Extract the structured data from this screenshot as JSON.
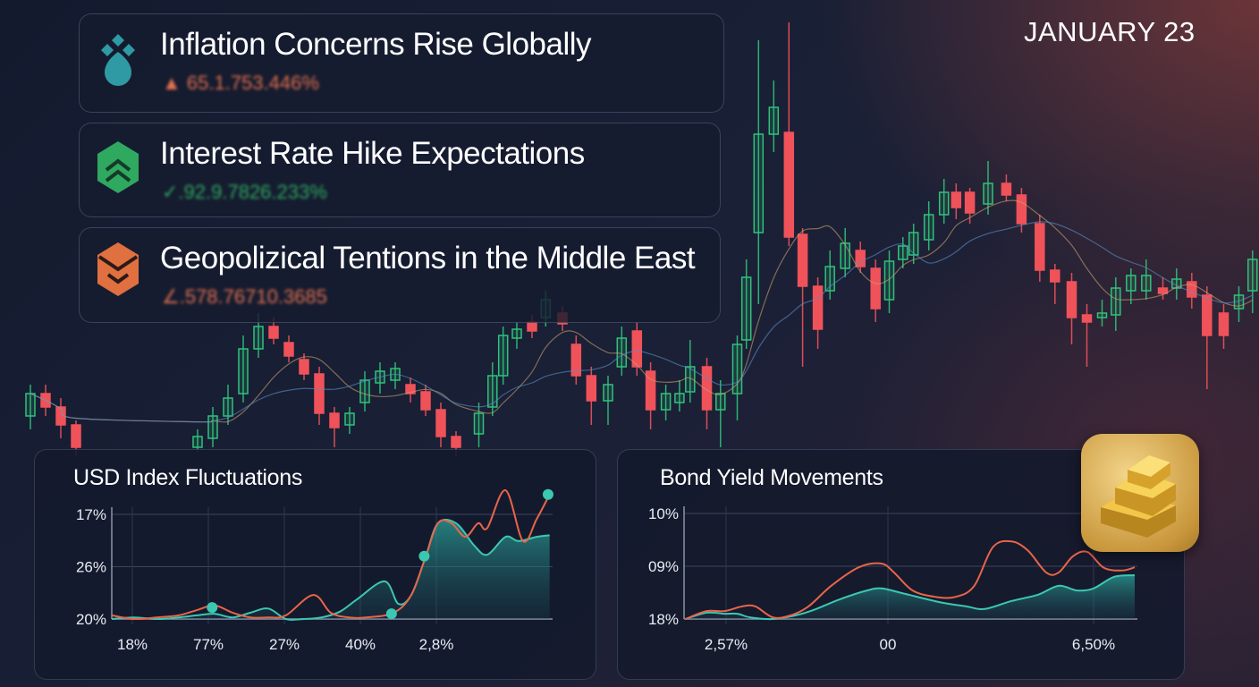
{
  "date": "JANUARY 23",
  "headlines": [
    {
      "title": "Inflation Concerns Rise Globally",
      "value": "▲ 65.1.753.446%",
      "icon": "teal-diamond-drop-icon",
      "color": "#e0704f"
    },
    {
      "title": "Interest Rate Hike Expectations",
      "value": "✓.92.9.7826.233%",
      "icon": "green-chevron-hexagon-icon",
      "color": "#2fa860"
    },
    {
      "title": "Geopolizical Tentions in the Middle East",
      "value": "∠.578.76710.3685",
      "icon": "orange-chevron-hexagon-icon",
      "color": "#e0704f"
    }
  ],
  "colors": {
    "up": "#2fc27a",
    "down": "#f0525a",
    "teal": "#3cc7b2",
    "red": "#e8654a",
    "gold": "#d9a640"
  },
  "gold_icon": "gold-bars-icon",
  "chart_data": [
    {
      "type": "candlestick",
      "title": "",
      "grid": false,
      "candles": [
        [
          2,
          135,
          160,
          170,
          120
        ],
        [
          3,
          160,
          145,
          170,
          135
        ],
        [
          4,
          145,
          125,
          155,
          110
        ],
        [
          5,
          125,
          100,
          130,
          90
        ],
        [
          13,
          100,
          112,
          120,
          95
        ],
        [
          14,
          110,
          135,
          145,
          100
        ],
        [
          15,
          135,
          155,
          170,
          125
        ],
        [
          16,
          160,
          210,
          225,
          150
        ],
        [
          17,
          210,
          235,
          250,
          200
        ],
        [
          18,
          235,
          222,
          245,
          215
        ],
        [
          19,
          217,
          202,
          225,
          195
        ],
        [
          20,
          198,
          182,
          205,
          175
        ],
        [
          21,
          182,
          138,
          190,
          125
        ],
        [
          22,
          138,
          122,
          145,
          100
        ],
        [
          23,
          125,
          138,
          145,
          115
        ],
        [
          24,
          150,
          175,
          185,
          140
        ],
        [
          25,
          172,
          185,
          195,
          160
        ],
        [
          26,
          175,
          188,
          195,
          165
        ],
        [
          27,
          170,
          160,
          178,
          150
        ],
        [
          28,
          162,
          142,
          170,
          135
        ],
        [
          29,
          142,
          112,
          150,
          100
        ],
        [
          30,
          112,
          100,
          118,
          90
        ],
        [
          31.5,
          115,
          138,
          150,
          100
        ],
        [
          32.4,
          145,
          180,
          195,
          135
        ],
        [
          33.1,
          180,
          225,
          235,
          170
        ],
        [
          34,
          222,
          232,
          240,
          210
        ],
        [
          35,
          240,
          230,
          248,
          222
        ],
        [
          35.9,
          245,
          265,
          275,
          235
        ],
        [
          37,
          250,
          238,
          258,
          230
        ],
        [
          37.9,
          215,
          180,
          225,
          170
        ],
        [
          38.9,
          180,
          152,
          190,
          125
        ],
        [
          40,
          152,
          170,
          180,
          125
        ],
        [
          40.9,
          190,
          222,
          235,
          180
        ],
        [
          41.9,
          230,
          190,
          240,
          180
        ],
        [
          42.8,
          185,
          142,
          195,
          120
        ],
        [
          43.8,
          142,
          160,
          170,
          130
        ],
        [
          44.7,
          150,
          160,
          175,
          140
        ],
        [
          45.4,
          162,
          190,
          220,
          150
        ],
        [
          46.5,
          190,
          142,
          200,
          120
        ],
        [
          47.4,
          142,
          160,
          175,
          100
        ],
        [
          48.5,
          160,
          215,
          225,
          130
        ],
        [
          49.1,
          220,
          290,
          310,
          210
        ],
        [
          49.9,
          340,
          450,
          555,
          260
        ],
        [
          50.9,
          450,
          480,
          510,
          430
        ],
        [
          51.9,
          452,
          335,
          575,
          325
        ],
        [
          52.8,
          338,
          280,
          345,
          190
        ],
        [
          53.8,
          280,
          232,
          290,
          210
        ],
        [
          54.6,
          275,
          302,
          320,
          265
        ],
        [
          55.6,
          300,
          328,
          345,
          290
        ],
        [
          56.6,
          320,
          302,
          330,
          295
        ],
        [
          57.6,
          300,
          255,
          310,
          240
        ],
        [
          58.5,
          265,
          308,
          320,
          250
        ],
        [
          59.4,
          310,
          325,
          335,
          300
        ],
        [
          60.1,
          315,
          340,
          350,
          305
        ],
        [
          61.1,
          332,
          360,
          375,
          320
        ],
        [
          62.1,
          360,
          385,
          400,
          350
        ],
        [
          62.9,
          385,
          368,
          395,
          355
        ],
        [
          63.8,
          385,
          362,
          390,
          350
        ],
        [
          65,
          372,
          395,
          420,
          360
        ],
        [
          66.2,
          395,
          382,
          405,
          375
        ],
        [
          67.2,
          382,
          350,
          390,
          340
        ],
        [
          68.4,
          350,
          298,
          360,
          285
        ],
        [
          69.4,
          298,
          285,
          305,
          260
        ],
        [
          70.5,
          285,
          245,
          295,
          215
        ],
        [
          71.5,
          248,
          240,
          260,
          190
        ],
        [
          72.5,
          245,
          250,
          265,
          235
        ],
        [
          73.4,
          248,
          278,
          290,
          230
        ],
        [
          74.4,
          275,
          292,
          300,
          260
        ],
        [
          75.4,
          275,
          292,
          310,
          265
        ],
        [
          76.5,
          278,
          272,
          290,
          265
        ],
        [
          77.4,
          278,
          288,
          300,
          265
        ],
        [
          78.4,
          285,
          268,
          295,
          255
        ],
        [
          79.4,
          270,
          225,
          280,
          165
        ],
        [
          80.5,
          250,
          225,
          260,
          210
        ],
        [
          81.5,
          255,
          270,
          280,
          240
        ],
        [
          82.4,
          275,
          310,
          320,
          250
        ]
      ]
    },
    {
      "type": "area",
      "title": "USD Index Fluctuations",
      "x_tick_labels": [
        "18%",
        "77%",
        "27%",
        "40%",
        "2,8%"
      ],
      "y_tick_labels": [
        "20%",
        "26%",
        "17%"
      ],
      "series": [
        {
          "color": "#e8654a",
          "points": [
            [
              -0.27,
              0.07
            ],
            [
              0.02,
              0
            ],
            [
              0.32,
              0.03
            ],
            [
              0.61,
              0.07
            ],
            [
              0.85,
              0.17
            ],
            [
              1.08,
              0.26
            ],
            [
              1.32,
              0.12
            ],
            [
              1.55,
              0.03
            ],
            [
              1.79,
              0.03
            ],
            [
              2.02,
              0.07
            ],
            [
              2.38,
              0.46
            ],
            [
              2.61,
              0.12
            ],
            [
              2.85,
              0.03
            ],
            [
              3.08,
              0.03
            ],
            [
              3.44,
              0.12
            ],
            [
              3.67,
              0.46
            ],
            [
              3.85,
              1.15
            ],
            [
              4.02,
              1.83
            ],
            [
              4.2,
              1.83
            ],
            [
              4.38,
              1.57
            ],
            [
              4.55,
              1.83
            ],
            [
              4.67,
              1.74
            ],
            [
              4.91,
              2.46
            ],
            [
              5.14,
              1.49
            ],
            [
              5.32,
              1.91
            ],
            [
              5.49,
              2.38
            ]
          ]
        },
        {
          "color": "#3cc7b2",
          "fill": true,
          "points": [
            [
              -0.27,
              0
            ],
            [
              0.02,
              0.03
            ],
            [
              0.32,
              0
            ],
            [
              0.61,
              0.03
            ],
            [
              0.85,
              0.07
            ],
            [
              1.08,
              0.1
            ],
            [
              1.32,
              0.03
            ],
            [
              1.55,
              0.12
            ],
            [
              1.79,
              0.2
            ],
            [
              2.02,
              0
            ],
            [
              2.26,
              0
            ],
            [
              2.49,
              0.03
            ],
            [
              2.73,
              0.14
            ],
            [
              2.96,
              0.38
            ],
            [
              3.32,
              0.72
            ],
            [
              3.5,
              0.29
            ],
            [
              3.67,
              0.46
            ],
            [
              3.85,
              1.15
            ],
            [
              4.02,
              1.83
            ],
            [
              4.26,
              1.83
            ],
            [
              4.5,
              1.4
            ],
            [
              4.67,
              1.23
            ],
            [
              4.91,
              1.57
            ],
            [
              5.08,
              1.49
            ],
            [
              5.32,
              1.57
            ],
            [
              5.49,
              1.6
            ]
          ]
        }
      ],
      "markers": [
        [
          1.05,
          0.22
        ],
        [
          3.41,
          0.1
        ],
        [
          3.84,
          1.2
        ],
        [
          5.47,
          2.38
        ]
      ]
    },
    {
      "type": "area",
      "title": "Bond Yield Movements",
      "x_tick_labels": [
        "2,57%",
        "00",
        "6,50%"
      ],
      "y_tick_labels": [
        "18%",
        "09%",
        "10%"
      ],
      "series": [
        {
          "color": "#e8654a",
          "points": [
            [
              -0.25,
              0
            ],
            [
              -0.12,
              0.15
            ],
            [
              -0.01,
              0.15
            ],
            [
              0.1,
              0.24
            ],
            [
              0.18,
              0.24
            ],
            [
              0.29,
              0.03
            ],
            [
              0.4,
              0.07
            ],
            [
              0.51,
              0.24
            ],
            [
              0.65,
              0.63
            ],
            [
              0.82,
              0.98
            ],
            [
              0.96,
              1.05
            ],
            [
              1.03,
              0.88
            ],
            [
              1.12,
              0.54
            ],
            [
              1.23,
              0.42
            ],
            [
              1.33,
              0.42
            ],
            [
              1.42,
              0.63
            ],
            [
              1.51,
              1.36
            ],
            [
              1.6,
              1.47
            ],
            [
              1.68,
              1.3
            ],
            [
              1.77,
              0.88
            ],
            [
              1.83,
              0.88
            ],
            [
              1.9,
              1.19
            ],
            [
              1.97,
              1.27
            ],
            [
              2.05,
              0.97
            ],
            [
              2.14,
              0.92
            ],
            [
              2.2,
              0.98
            ]
          ]
        },
        {
          "color": "#3cc7b2",
          "fill": true,
          "points": [
            [
              -0.25,
              0
            ],
            [
              -0.12,
              0.12
            ],
            [
              -0.01,
              0.1
            ],
            [
              0.07,
              0.1
            ],
            [
              0.15,
              0.03
            ],
            [
              0.29,
              0
            ],
            [
              0.43,
              0.07
            ],
            [
              0.54,
              0.17
            ],
            [
              0.7,
              0.37
            ],
            [
              0.87,
              0.54
            ],
            [
              0.96,
              0.58
            ],
            [
              1.07,
              0.49
            ],
            [
              1.25,
              0.32
            ],
            [
              1.38,
              0.24
            ],
            [
              1.47,
              0.19
            ],
            [
              1.6,
              0.34
            ],
            [
              1.73,
              0.46
            ],
            [
              1.83,
              0.63
            ],
            [
              1.92,
              0.54
            ],
            [
              2.0,
              0.58
            ],
            [
              2.1,
              0.8
            ],
            [
              2.2,
              0.83
            ]
          ]
        }
      ]
    }
  ]
}
